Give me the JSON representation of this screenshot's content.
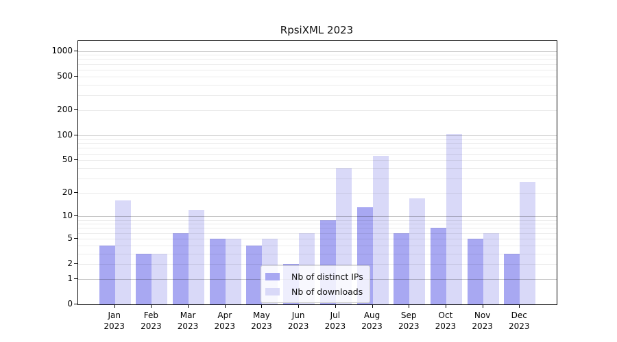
{
  "title": "RpsiXML 2023",
  "chart_data": {
    "type": "bar",
    "title": "RpsiXML 2023",
    "categories": [
      "Jan 2023",
      "Feb 2023",
      "Mar 2023",
      "Apr 2023",
      "May 2023",
      "Jun 2023",
      "Jul 2023",
      "Aug 2023",
      "Sep 2023",
      "Oct 2023",
      "Nov 2023",
      "Dec 2023"
    ],
    "series": [
      {
        "name": "Nb of distinct IPs",
        "color": "#a8a8f2",
        "values": [
          4,
          3,
          6,
          5,
          4,
          2,
          9,
          13,
          6,
          7,
          5,
          3
        ]
      },
      {
        "name": "Nb of downloads",
        "color": "#d9d9f8",
        "values": [
          16,
          3,
          12,
          5,
          5,
          6,
          40,
          56,
          17,
          103,
          6,
          27
        ]
      }
    ],
    "xlabel": "",
    "ylabel": "",
    "y_scale": "log10(1+value)",
    "y_ticks": [
      0,
      1,
      2,
      5,
      10,
      20,
      50,
      100,
      200,
      500,
      1000
    ],
    "ylim": [
      0,
      1100
    ],
    "grid": {
      "horizontal_major_at": [
        1,
        10,
        100,
        1000
      ],
      "horizontal_minor": "2-9 of each decade",
      "major_color": "#c7c7c7",
      "minor_color": "#ebebeb"
    },
    "legend": {
      "position": "inside-bottom-center",
      "entries": [
        "Nb of distinct IPs",
        "Nb of downloads"
      ]
    }
  },
  "colors": {
    "background": "#ffffff",
    "frame": "#000000",
    "bar_distinct_ips": "#a8a8f2",
    "bar_downloads": "#d9d9f8"
  }
}
